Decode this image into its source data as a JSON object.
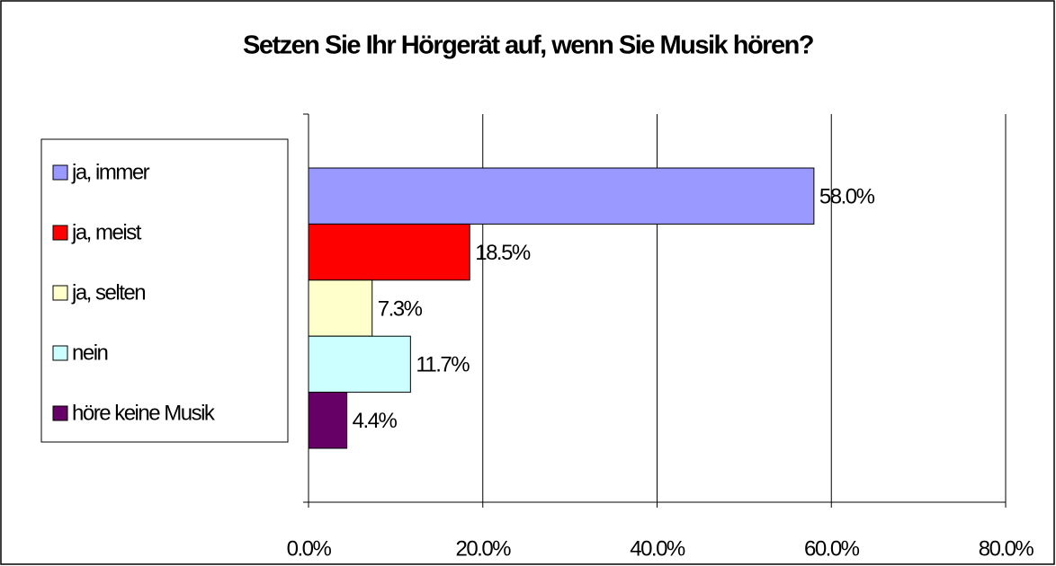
{
  "chart_data": {
    "type": "bar",
    "orientation": "horizontal",
    "title": "Setzen Sie Ihr Hörgerät auf, wenn Sie Musik hören?",
    "series": [
      {
        "name": "ja, immer",
        "color": "#9999ff",
        "values": [
          58.0
        ],
        "value_labels": [
          "58.0%"
        ]
      },
      {
        "name": "ja, meist",
        "color": "#ff0000",
        "values": [
          18.5
        ],
        "value_labels": [
          "18.5%"
        ]
      },
      {
        "name": "ja, selten",
        "color": "#ffffcc",
        "values": [
          7.3
        ],
        "value_labels": [
          "7.3%"
        ]
      },
      {
        "name": "nein",
        "color": "#ccffff",
        "values": [
          11.7
        ],
        "value_labels": [
          "11.7%"
        ]
      },
      {
        "name": "höre keine Musik",
        "color": "#660066",
        "values": [
          4.4
        ],
        "value_labels": [
          "4.4%"
        ]
      }
    ],
    "xlim": [
      0,
      80
    ],
    "xticks": [
      {
        "value": 0,
        "label": "0.0%"
      },
      {
        "value": 20,
        "label": "20.0%"
      },
      {
        "value": 40,
        "label": "40.0%"
      },
      {
        "value": 60,
        "label": "60.0%"
      },
      {
        "value": 80,
        "label": "80.0%"
      }
    ],
    "grid": true,
    "legend": "left"
  }
}
